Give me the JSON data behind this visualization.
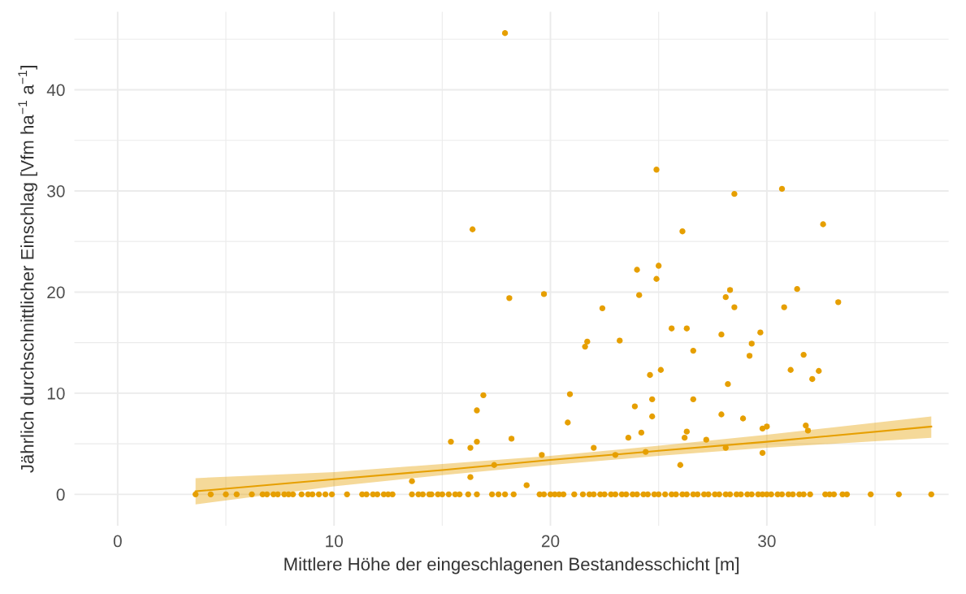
{
  "chart_data": {
    "type": "scatter",
    "xlabel": "Mittlere Höhe der eingeschlagenen Bestandesschicht [m]",
    "ylabel": "Jährlich durchschnittlicher Einschlag [Vfm ha$^{−1}$ a$^{−1}$]",
    "xlim": [
      -2,
      38.4
    ],
    "ylim": [
      -3.1,
      47.7
    ],
    "xticks": [
      0,
      {
        "value": 5,
        "label": null
      },
      10,
      {
        "value": 15,
        "label": null
      },
      20,
      {
        "value": 25,
        "label": null
      },
      30,
      {
        "value": 35,
        "label": null
      }
    ],
    "yticks": [
      0,
      {
        "value": 5,
        "label": null
      },
      10,
      {
        "value": 15,
        "label": null
      },
      20,
      {
        "value": 25,
        "label": null
      },
      30,
      {
        "value": 35,
        "label": null
      },
      40,
      {
        "value": 45,
        "label": null
      }
    ],
    "grid": true,
    "legend": false,
    "series": [
      {
        "color": "#e69f00",
        "marker": "circle",
        "x": [
          15.4,
          16.3,
          16.6,
          16.6,
          16.9,
          18.1,
          18.2,
          19.7,
          19.6,
          16.3,
          17.4,
          20.8,
          20.9,
          21.7,
          21.6,
          22.4,
          22.0,
          23.0,
          23.2,
          23.6,
          24.0,
          24.1,
          23.9,
          24.2,
          24.4,
          24.6,
          24.7,
          24.7,
          24.9,
          25.0,
          25.1,
          25.6,
          26.0,
          26.2,
          26.3,
          26.3,
          26.6,
          26.6,
          17.9,
          16.4,
          24.9,
          26.1,
          28.5,
          30.7,
          32.6,
          28.3,
          28.1,
          28.5,
          31.4,
          30.8,
          33.3,
          27.9,
          29.7,
          29.3,
          29.2,
          31.7,
          31.1,
          32.4,
          32.1,
          28.2,
          27.9,
          28.9,
          29.8,
          30.0,
          31.8,
          31.9,
          27.2,
          28.1,
          29.8,
          13.6,
          18.9,
          3.6,
          4.3,
          5.0,
          5.5,
          6.2,
          6.7,
          6.9,
          7.2,
          7.4,
          7.7,
          7.9,
          8.1,
          8.5,
          8.8,
          9.0,
          9.3,
          9.6,
          9.9,
          10.6,
          11.3,
          11.5,
          11.8,
          12.0,
          12.3,
          12.5,
          12.7,
          13.6,
          13.9,
          14.1,
          14.4,
          14.5,
          14.8,
          15.0,
          15.3,
          15.6,
          15.8,
          16.2,
          16.6,
          17.3,
          17.6,
          17.9,
          18.3,
          19.5,
          19.7,
          20.0,
          20.2,
          20.4,
          20.6,
          21.1,
          21.5,
          21.8,
          22.0,
          22.3,
          22.5,
          22.8,
          23.0,
          23.3,
          23.5,
          23.8,
          24.0,
          24.3,
          24.5,
          24.8,
          25.0,
          25.3,
          25.6,
          25.8,
          26.1,
          26.3,
          26.6,
          26.8,
          27.1,
          27.3,
          27.6,
          27.8,
          28.1,
          28.3,
          28.6,
          28.8,
          29.1,
          29.3,
          29.6,
          29.8,
          30.0,
          30.2,
          30.5,
          30.7,
          31.0,
          31.2,
          31.5,
          31.7,
          32.0,
          32.7,
          32.9,
          33.1,
          33.5,
          33.7,
          34.8,
          36.1,
          37.6
        ],
        "values": [
          5.2,
          4.6,
          5.2,
          8.3,
          9.8,
          19.4,
          5.5,
          19.8,
          3.9,
          1.7,
          2.9,
          7.1,
          9.9,
          15.1,
          14.6,
          18.4,
          4.6,
          3.9,
          15.2,
          5.6,
          22.2,
          19.7,
          8.7,
          6.1,
          4.2,
          11.8,
          9.4,
          7.7,
          21.3,
          22.6,
          12.3,
          16.4,
          2.9,
          5.6,
          16.4,
          6.2,
          14.2,
          9.4,
          45.6,
          26.2,
          32.1,
          26.0,
          29.7,
          30.2,
          26.7,
          20.2,
          19.5,
          18.5,
          20.3,
          18.5,
          19.0,
          15.8,
          16.0,
          14.9,
          13.7,
          13.8,
          12.3,
          12.2,
          11.4,
          10.9,
          7.9,
          7.5,
          6.5,
          6.7,
          6.8,
          6.3,
          5.4,
          4.6,
          4.1,
          1.3,
          0.9,
          0,
          0,
          0,
          0,
          0,
          0,
          0,
          0,
          0,
          0,
          0,
          0,
          0,
          0,
          0,
          0,
          0,
          0,
          0,
          0,
          0,
          0,
          0,
          0,
          0,
          0,
          0,
          0,
          0,
          0,
          0,
          0,
          0,
          0,
          0,
          0,
          0,
          0,
          0,
          0,
          0,
          0,
          0,
          0,
          0,
          0,
          0,
          0,
          0,
          0,
          0,
          0,
          0,
          0,
          0,
          0,
          0,
          0,
          0,
          0,
          0,
          0,
          0,
          0,
          0,
          0,
          0,
          0,
          0,
          0,
          0,
          0,
          0,
          0,
          0,
          0,
          0,
          0,
          0,
          0,
          0,
          0,
          0,
          0,
          0,
          0,
          0,
          0,
          0,
          0,
          0,
          0,
          0,
          0,
          0,
          0,
          0,
          0,
          0,
          0
        ]
      },
      {
        "type": "line",
        "color": "#e69f00",
        "marker": "none",
        "x": [
          3.6,
          10,
          15,
          20,
          25,
          30,
          37.6
        ],
        "values": [
          0.3,
          1.5,
          2.4,
          3.4,
          4.3,
          5.2,
          6.7
        ],
        "lower": [
          -1.0,
          0.8,
          1.9,
          2.9,
          3.8,
          4.6,
          5.6
        ],
        "upper": [
          1.6,
          2.2,
          3.0,
          3.8,
          4.8,
          5.9,
          7.7
        ]
      }
    ]
  }
}
